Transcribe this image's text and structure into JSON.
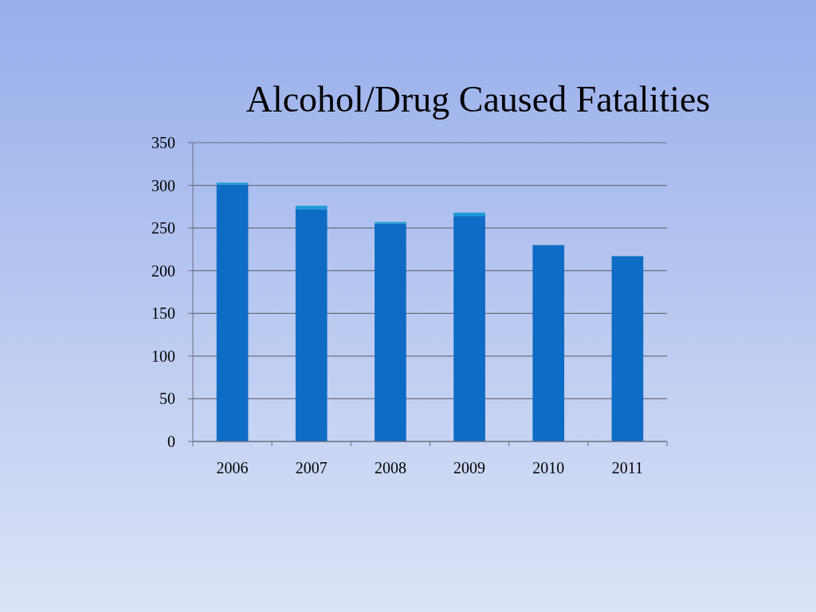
{
  "chart_data": {
    "type": "bar",
    "title": "Alcohol/Drug Caused Fatalities",
    "categories": [
      "2006",
      "2007",
      "2008",
      "2009",
      "2010",
      "2011"
    ],
    "stacked": true,
    "series": [
      {
        "color": "#0f6cc4",
        "values": [
          301,
          272,
          255,
          264,
          230,
          217
        ]
      },
      {
        "color": "#1a9ad6",
        "values": [
          2,
          4,
          2,
          4,
          0,
          0
        ]
      }
    ],
    "ylim": [
      0,
      350
    ],
    "yticks": [
      0,
      50,
      100,
      150,
      200,
      250,
      300,
      350
    ],
    "grid": "y"
  }
}
